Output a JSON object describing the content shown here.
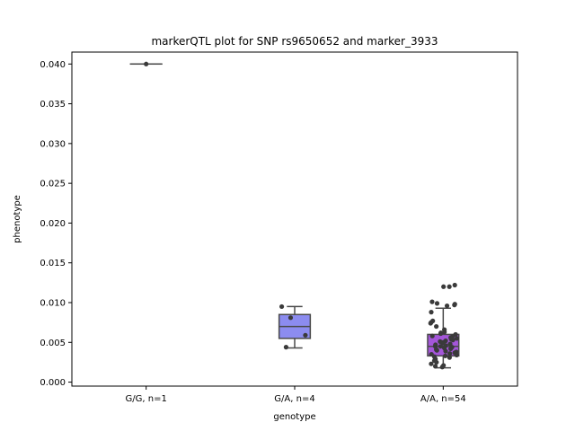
{
  "chart_data": {
    "type": "box",
    "title": "markerQTL plot for SNP rs9650652 and marker_3933",
    "xlabel": "genotype",
    "ylabel": "phenotype",
    "ylim": [
      -0.0005,
      0.0415
    ],
    "yticks": [
      "0.000",
      "0.005",
      "0.010",
      "0.015",
      "0.020",
      "0.025",
      "0.030",
      "0.035",
      "0.040"
    ],
    "categories": [
      "G/G, n=1",
      "G/A, n=4",
      "A/A, n=54"
    ],
    "colors": {
      "G/G": "#5b7cf0",
      "G/A": "#8c8cf0",
      "A/A": "#a456d9",
      "median_line": "#4a4a4a",
      "points": "#3a3a3a"
    },
    "boxes": [
      {
        "q1": 0.04,
        "median": 0.04,
        "q3": 0.04,
        "whisker_low": 0.04,
        "whisker_high": 0.04
      },
      {
        "q1": 0.0055,
        "median": 0.007,
        "q3": 0.0085,
        "whisker_low": 0.0043,
        "whisker_high": 0.0095
      },
      {
        "q1": 0.0033,
        "median": 0.0045,
        "q3": 0.006,
        "whisker_low": 0.0018,
        "whisker_high": 0.0093
      }
    ],
    "points": [
      [
        0.04
      ],
      [
        0.0095,
        0.0081,
        0.0059,
        0.0044
      ],
      [
        0.012,
        0.0122,
        0.012,
        0.0101,
        0.0099,
        0.0097,
        0.0096,
        0.0098,
        0.0088,
        0.0077,
        0.0075,
        0.0074,
        0.007,
        0.0066,
        0.0063,
        0.0062,
        0.0061,
        0.006,
        0.0058,
        0.0057,
        0.0056,
        0.0055,
        0.0054,
        0.0053,
        0.0052,
        0.0051,
        0.005,
        0.0049,
        0.0048,
        0.0047,
        0.0046,
        0.0045,
        0.0045,
        0.0044,
        0.0043,
        0.0042,
        0.0041,
        0.004,
        0.0039,
        0.0038,
        0.0037,
        0.0036,
        0.0035,
        0.0034,
        0.0033,
        0.0032,
        0.0031,
        0.0029,
        0.0027,
        0.0025,
        0.0023,
        0.0021,
        0.002,
        0.0019
      ]
    ]
  }
}
